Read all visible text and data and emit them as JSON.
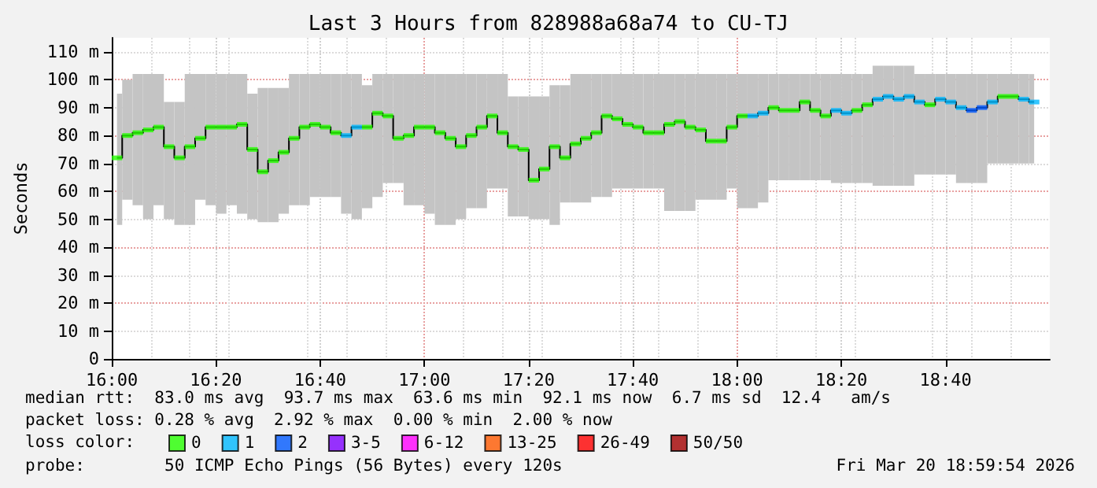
{
  "chart_data": {
    "type": "scatter",
    "title": "Last 3 Hours from 828988a68a74 to CU-TJ",
    "ylabel": "Seconds",
    "x": [
      16.0167,
      16.05,
      16.0833,
      16.1167,
      16.15,
      16.1833,
      16.2167,
      16.25,
      16.2833,
      16.3167,
      16.35,
      16.3833,
      16.4167,
      16.45,
      16.4833,
      16.5167,
      16.55,
      16.5833,
      16.6167,
      16.65,
      16.6833,
      16.7167,
      16.75,
      16.7833,
      16.8167,
      16.85,
      16.8833,
      16.9167,
      16.95,
      16.9833,
      17.0167,
      17.05,
      17.0833,
      17.1167,
      17.15,
      17.1833,
      17.2167,
      17.25,
      17.2833,
      17.3167,
      17.35,
      17.3833,
      17.4167,
      17.45,
      17.4833,
      17.5167,
      17.55,
      17.5833,
      17.6167,
      17.65,
      17.6833,
      17.7167,
      17.75,
      17.7833,
      17.8167,
      17.85,
      17.8833,
      17.9167,
      17.95,
      17.9833,
      18.0167,
      18.05,
      18.0833,
      18.1167,
      18.15,
      18.1833,
      18.2167,
      18.25,
      18.2833,
      18.3167,
      18.35,
      18.3833,
      18.4167,
      18.45,
      18.4833,
      18.5167,
      18.55,
      18.5833,
      18.6167,
      18.65,
      18.6833,
      18.7167,
      18.75,
      18.7833,
      18.8167,
      18.85,
      18.8833,
      18.9167,
      18.95
    ],
    "series": [
      {
        "type": "step",
        "color": "#000000",
        "marker": "none",
        "values": [
          72,
          80,
          81,
          82,
          83,
          76,
          72,
          76,
          79,
          83,
          83,
          83,
          84,
          75,
          67,
          71,
          74,
          79,
          83,
          84,
          83,
          81,
          80,
          83,
          83,
          88,
          87,
          79,
          80,
          83,
          83,
          81,
          79,
          76,
          80,
          83,
          87,
          81,
          76,
          75,
          64,
          68,
          76,
          72,
          77,
          79,
          81,
          87,
          86,
          84,
          83,
          81,
          81,
          84,
          85,
          83,
          82,
          78,
          78,
          83,
          87,
          87,
          88,
          90,
          89,
          89,
          92,
          89,
          87,
          89,
          88,
          89,
          91,
          93,
          94,
          93,
          94,
          92,
          91,
          93,
          92,
          90,
          89,
          90,
          92,
          94,
          94,
          93,
          92
        ],
        "lower": [
          48,
          57,
          55,
          50,
          55,
          50,
          48,
          48,
          57,
          55,
          52,
          55,
          52,
          50,
          49,
          49,
          52,
          55,
          55,
          58,
          58,
          58,
          52,
          50,
          54,
          58,
          63,
          63,
          55,
          55,
          52,
          48,
          48,
          50,
          54,
          54,
          61,
          61,
          51,
          51,
          50,
          50,
          48,
          56,
          56,
          56,
          58,
          58,
          61,
          61,
          61,
          61,
          61,
          53,
          53,
          53,
          57,
          57,
          57,
          61,
          54,
          54,
          56,
          64,
          64,
          64,
          64,
          64,
          64,
          63,
          63,
          63,
          63,
          62,
          62,
          62,
          62,
          66,
          66,
          66,
          66,
          63,
          63,
          63,
          70,
          70,
          70,
          70,
          70
        ],
        "upper": [
          95,
          100,
          102,
          102,
          102,
          92,
          92,
          102,
          102,
          102,
          102,
          102,
          102,
          95,
          97,
          97,
          97,
          102,
          102,
          102,
          102,
          102,
          102,
          102,
          98,
          102,
          102,
          102,
          102,
          102,
          102,
          102,
          102,
          102,
          102,
          102,
          102,
          102,
          94,
          94,
          94,
          94,
          98,
          98,
          102,
          102,
          102,
          102,
          102,
          102,
          102,
          102,
          102,
          102,
          102,
          102,
          102,
          102,
          102,
          102,
          102,
          102,
          102,
          102,
          102,
          102,
          102,
          102,
          102,
          102,
          102,
          102,
          102,
          105,
          105,
          105,
          105,
          102,
          102,
          102,
          102,
          102,
          102,
          102,
          102,
          102,
          102,
          102,
          102
        ]
      },
      {
        "name": "0",
        "color": "#26ff00",
        "values": [
          72,
          80,
          81,
          82,
          83,
          76,
          72,
          76,
          79,
          83,
          83,
          83,
          84,
          75,
          67,
          71,
          74,
          79,
          83,
          84,
          83,
          81,
          null,
          null,
          83,
          88,
          87,
          79,
          80,
          83,
          83,
          81,
          79,
          76,
          80,
          83,
          87,
          81,
          76,
          75,
          64,
          68,
          76,
          72,
          77,
          79,
          81,
          87,
          86,
          84,
          83,
          81,
          81,
          84,
          85,
          83,
          82,
          78,
          78,
          83,
          87,
          null,
          null,
          90,
          89,
          89,
          92,
          89,
          87,
          null,
          null,
          89,
          91,
          null,
          null,
          null,
          null,
          null,
          91,
          null,
          null,
          null,
          null,
          null,
          null,
          94,
          94,
          null,
          null
        ]
      },
      {
        "name": "1",
        "color": "#00b8ff",
        "values": [
          null,
          null,
          null,
          null,
          null,
          null,
          null,
          null,
          null,
          null,
          null,
          null,
          null,
          null,
          null,
          null,
          null,
          null,
          null,
          null,
          null,
          null,
          80,
          83,
          null,
          null,
          null,
          null,
          null,
          null,
          null,
          null,
          null,
          null,
          null,
          null,
          null,
          null,
          null,
          null,
          null,
          null,
          null,
          null,
          null,
          null,
          null,
          null,
          null,
          null,
          null,
          null,
          null,
          null,
          null,
          null,
          null,
          null,
          null,
          null,
          null,
          87,
          88,
          null,
          null,
          null,
          null,
          null,
          null,
          89,
          88,
          null,
          null,
          93,
          94,
          93,
          94,
          92,
          null,
          93,
          92,
          90,
          null,
          null,
          92,
          null,
          null,
          93,
          92
        ]
      },
      {
        "name": "2",
        "color": "#0059ff",
        "values": [
          null,
          null,
          null,
          null,
          null,
          null,
          null,
          null,
          null,
          null,
          null,
          null,
          null,
          null,
          null,
          null,
          null,
          null,
          null,
          null,
          null,
          null,
          null,
          null,
          null,
          null,
          null,
          null,
          null,
          null,
          null,
          null,
          null,
          null,
          null,
          null,
          null,
          null,
          null,
          null,
          null,
          null,
          null,
          null,
          null,
          null,
          null,
          null,
          null,
          null,
          null,
          null,
          null,
          null,
          null,
          null,
          null,
          null,
          null,
          null,
          null,
          null,
          null,
          null,
          null,
          null,
          null,
          null,
          null,
          null,
          null,
          null,
          null,
          null,
          null,
          null,
          null,
          null,
          null,
          null,
          null,
          null,
          89,
          90,
          null,
          null,
          null,
          null,
          null
        ]
      },
      {
        "name": "3-5",
        "color": "#7e00ff",
        "values": [
          null,
          null,
          null,
          null,
          null,
          null,
          null,
          null,
          null,
          null,
          null,
          null,
          null,
          null,
          null,
          null,
          null,
          null,
          null,
          null,
          null,
          null,
          null,
          null,
          null,
          null,
          null,
          null,
          null,
          null,
          null,
          null,
          null,
          null,
          null,
          null,
          null,
          null,
          null,
          null,
          null,
          null,
          null,
          null,
          null,
          null,
          null,
          null,
          null,
          null,
          null,
          null,
          null,
          null,
          null,
          null,
          null,
          null,
          null,
          null,
          null,
          null,
          null,
          null,
          null,
          null,
          null,
          null,
          null,
          null,
          null,
          null,
          null,
          null,
          null,
          null,
          null,
          null,
          null,
          null,
          null,
          null,
          null,
          null,
          null,
          null,
          null,
          null,
          null
        ]
      },
      {
        "name": "6-12",
        "color": "#ff00fe",
        "values": [
          null,
          null,
          null,
          null,
          null,
          null,
          null,
          null,
          null,
          null,
          null,
          null,
          null,
          null,
          null,
          null,
          null,
          null,
          null,
          null,
          null,
          null,
          null,
          null,
          null,
          null,
          null,
          null,
          null,
          null,
          null,
          null,
          null,
          null,
          null,
          null,
          null,
          null,
          null,
          null,
          null,
          null,
          null,
          null,
          null,
          null,
          null,
          null,
          null,
          null,
          null,
          null,
          null,
          null,
          null,
          null,
          null,
          null,
          null,
          null,
          null,
          null,
          null,
          null,
          null,
          null,
          null,
          null,
          null,
          null,
          null,
          null,
          null,
          null,
          null,
          null,
          null,
          null,
          null,
          null,
          null,
          null,
          null,
          null,
          null,
          null,
          null,
          null,
          null
        ]
      },
      {
        "name": "13-25",
        "color": "#ff5900",
        "values": [
          null,
          null,
          null,
          null,
          null,
          null,
          null,
          null,
          null,
          null,
          null,
          null,
          null,
          null,
          null,
          null,
          null,
          null,
          null,
          null,
          null,
          null,
          null,
          null,
          null,
          null,
          null,
          null,
          null,
          null,
          null,
          null,
          null,
          null,
          null,
          null,
          null,
          null,
          null,
          null,
          null,
          null,
          null,
          null,
          null,
          null,
          null,
          null,
          null,
          null,
          null,
          null,
          null,
          null,
          null,
          null,
          null,
          null,
          null,
          null,
          null,
          null,
          null,
          null,
          null,
          null,
          null,
          null,
          null,
          null,
          null,
          null,
          null,
          null,
          null,
          null,
          null,
          null,
          null,
          null,
          null,
          null,
          null,
          null,
          null,
          null,
          null,
          null,
          null
        ]
      },
      {
        "name": "26-49",
        "color": "#ff0000",
        "values": [
          null,
          null,
          null,
          null,
          null,
          null,
          null,
          null,
          null,
          null,
          null,
          null,
          null,
          null,
          null,
          null,
          null,
          null,
          null,
          null,
          null,
          null,
          null,
          null,
          null,
          null,
          null,
          null,
          null,
          null,
          null,
          null,
          null,
          null,
          null,
          null,
          null,
          null,
          null,
          null,
          null,
          null,
          null,
          null,
          null,
          null,
          null,
          null,
          null,
          null,
          null,
          null,
          null,
          null,
          null,
          null,
          null,
          null,
          null,
          null,
          null,
          null,
          null,
          null,
          null,
          null,
          null,
          null,
          null,
          null,
          null,
          null,
          null,
          null,
          null,
          null,
          null,
          null,
          null,
          null,
          null,
          null,
          null,
          null,
          null,
          null,
          null,
          null,
          null
        ]
      },
      {
        "name": "50/50",
        "color": "#a10000",
        "values": [
          null,
          null,
          null,
          null,
          null,
          null,
          null,
          null,
          null,
          null,
          null,
          null,
          null,
          null,
          null,
          null,
          null,
          null,
          null,
          null,
          null,
          null,
          null,
          null,
          null,
          null,
          null,
          null,
          null,
          null,
          null,
          null,
          null,
          null,
          null,
          null,
          null,
          null,
          null,
          null,
          null,
          null,
          null,
          null,
          null,
          null,
          null,
          null,
          null,
          null,
          null,
          null,
          null,
          null,
          null,
          null,
          null,
          null,
          null,
          null,
          null,
          null,
          null,
          null,
          null,
          null,
          null,
          null,
          null,
          null,
          null,
          null,
          null,
          null,
          null,
          null,
          null,
          null,
          null,
          null,
          null,
          null,
          null,
          null,
          null,
          null,
          null,
          null,
          null
        ]
      }
    ],
    "marker": "square",
    "xlim": [
      16,
      19
    ],
    "xticks": [
      {
        "value": 16,
        "label": "16:00"
      },
      {
        "value": 16.3333,
        "label": "16:20"
      },
      {
        "value": 16.6667,
        "label": "16:40"
      },
      {
        "value": 17,
        "label": "17:00"
      },
      {
        "value": 17.3333,
        "label": "17:20"
      },
      {
        "value": 17.6667,
        "label": "17:40"
      },
      {
        "value": 18,
        "label": "18:00"
      },
      {
        "value": 18.3333,
        "label": "18:20"
      },
      {
        "value": 18.6667,
        "label": "18:40"
      }
    ],
    "ylim": [
      0,
      115
    ],
    "yticks": [
      0,
      {
        "value": 10,
        "label": "10 m"
      },
      {
        "value": 20,
        "label": "20 m"
      },
      {
        "value": 30,
        "label": "30 m"
      },
      {
        "value": 40,
        "label": "40 m"
      },
      {
        "value": 50,
        "label": "50 m"
      },
      {
        "value": 60,
        "label": "60 m"
      },
      {
        "value": 70,
        "label": "70 m"
      },
      {
        "value": 80,
        "label": "80 m"
      },
      {
        "value": 90,
        "label": "90 m"
      },
      {
        "value": 100,
        "label": "100 m"
      },
      {
        "value": 110,
        "label": "110 m"
      }
    ],
    "grid": true,
    "legend": "bottom",
    "annotations": [
      "median rtt:  83.0 ms avg  93.7 ms max  63.6 ms min  92.1 ms now  6.7 ms sd  12.4   am/s",
      "packet loss: 0.28 % avg  2.92 % max  0.00 % min  2.00 % now",
      "loss color:",
      "probe:        50 ICMP Echo Pings (56 Bytes) every 120s",
      "Fri Mar 20 18:59:54 2026"
    ]
  }
}
